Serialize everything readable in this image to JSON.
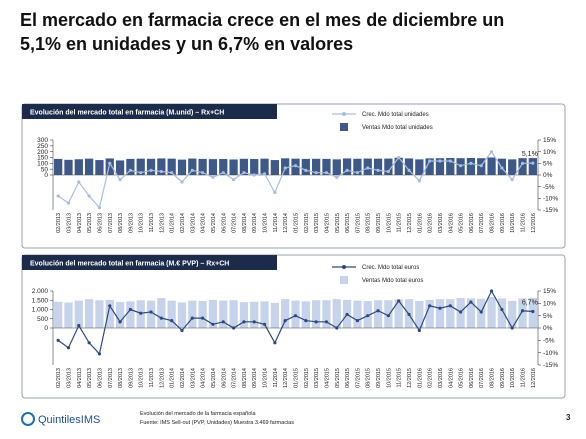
{
  "title": "El mercado en farmacia crece en el mes de diciembre un 5,1% en unidades y un 6,7% en valores",
  "chart_data": [
    {
      "type": "combo",
      "title": "Evolución del mercado total en farmacia (M.unid) – Rx+CH",
      "categories": [
        "02/2013",
        "03/2013",
        "04/2013",
        "05/2013",
        "06/2013",
        "07/2013",
        "08/2013",
        "09/2013",
        "10/2013",
        "11/2013",
        "12/2013",
        "01/2014",
        "02/2014",
        "03/2014",
        "04/2014",
        "05/2014",
        "06/2014",
        "07/2014",
        "08/2014",
        "09/2014",
        "10/2014",
        "11/2014",
        "12/2014",
        "01/2015",
        "02/2015",
        "03/2015",
        "04/2015",
        "05/2015",
        "06/2015",
        "07/2015",
        "08/2015",
        "09/2015",
        "10/2015",
        "11/2015",
        "12/2015",
        "01/2016",
        "02/2016",
        "03/2016",
        "04/2016",
        "05/2016",
        "06/2016",
        "07/2016",
        "08/2016",
        "09/2016",
        "10/2016",
        "11/2016",
        "12/2016"
      ],
      "series": [
        {
          "name": "Crec. Mdo total unidades",
          "type": "line",
          "axis": "y2",
          "color": "#a9bde0",
          "values": [
            -9,
            -12,
            -3,
            -9,
            -14,
            5,
            -2,
            2,
            1,
            2,
            1.5,
            1,
            -3,
            2,
            1,
            -1,
            1,
            -2,
            1,
            0,
            0.5,
            -7.5,
            3,
            4,
            2,
            1,
            1,
            -1,
            2,
            1,
            3,
            2,
            1.5,
            7.5,
            2,
            -2.5,
            6,
            6,
            6,
            4,
            5,
            4,
            10,
            3,
            -2,
            5,
            5.1
          ]
        },
        {
          "name": "Ventas Mdo total unidades",
          "type": "bar",
          "color": "#3e5987",
          "values": [
            138,
            130,
            135,
            140,
            128,
            142,
            125,
            138,
            140,
            139,
            142,
            140,
            132,
            141,
            138,
            136,
            137,
            133,
            139,
            137,
            140,
            128,
            143,
            140,
            138,
            139,
            138,
            134,
            142,
            139,
            141,
            140,
            141,
            148,
            142,
            134,
            143,
            144,
            146,
            144,
            146,
            144,
            150,
            140,
            134,
            144,
            145
          ]
        }
      ],
      "annotation": "5,1%",
      "ylim": [
        -300,
        300
      ],
      "yticks": [
        0,
        50,
        100,
        150,
        200,
        250,
        300
      ],
      "y2lim": [
        -15,
        15
      ],
      "y2ticks": [
        {
          "value": -15,
          "label": "-15%"
        },
        {
          "value": -10,
          "label": "-10%"
        },
        {
          "value": -5,
          "label": "-5%"
        },
        {
          "value": 0,
          "label": "0%"
        },
        {
          "value": 5,
          "label": "5%"
        },
        {
          "value": 10,
          "label": "10%"
        },
        {
          "value": 15,
          "label": "15%"
        }
      ]
    },
    {
      "type": "combo",
      "title": "Evolución del mercado total en farmacia (M.€ PVP) – Rx+CH",
      "categories": [
        "02/2013",
        "03/2013",
        "04/2013",
        "05/2013",
        "06/2013",
        "07/2013",
        "08/2013",
        "09/2013",
        "10/2013",
        "11/2013",
        "12/2013",
        "01/2014",
        "02/2014",
        "03/2014",
        "04/2014",
        "05/2014",
        "06/2014",
        "07/2014",
        "08/2014",
        "09/2014",
        "10/2014",
        "11/2014",
        "12/2014",
        "01/2015",
        "02/2015",
        "03/2015",
        "04/2015",
        "05/2015",
        "06/2015",
        "07/2015",
        "08/2015",
        "09/2015",
        "10/2015",
        "11/2015",
        "12/2015",
        "01/2016",
        "02/2016",
        "03/2016",
        "04/2016",
        "05/2016",
        "06/2016",
        "07/2016",
        "08/2016",
        "09/2016",
        "10/2016",
        "11/2016",
        "12/2016"
      ],
      "series": [
        {
          "name": "Crec. Mdo total euros",
          "type": "line",
          "axis": "y2",
          "color": "#2e4a7d",
          "values": [
            -5,
            -8,
            1,
            -6,
            -10.5,
            9,
            2.5,
            7.5,
            6,
            6.5,
            4,
            3,
            -1,
            4,
            4,
            1.5,
            2.5,
            0,
            2.5,
            2.5,
            1.5,
            -6,
            3,
            5,
            3,
            2.5,
            2.5,
            0,
            5.5,
            3,
            5,
            7,
            5,
            11,
            5.5,
            -1,
            9,
            8,
            9,
            6.5,
            10.5,
            6.5,
            15,
            7.5,
            0,
            7,
            6.7
          ]
        },
        {
          "name": "Ventas Mdo total euros",
          "type": "bar",
          "color": "#c6d3ea",
          "values": [
            1420,
            1380,
            1480,
            1560,
            1500,
            1520,
            1400,
            1440,
            1500,
            1480,
            1620,
            1480,
            1380,
            1480,
            1460,
            1520,
            1480,
            1500,
            1400,
            1420,
            1440,
            1360,
            1560,
            1480,
            1440,
            1500,
            1500,
            1560,
            1520,
            1480,
            1460,
            1500,
            1500,
            1540,
            1560,
            1460,
            1520,
            1560,
            1560,
            1620,
            1600,
            1580,
            1680,
            1600,
            1460,
            1600,
            1620
          ]
        }
      ],
      "annotation": "6,7%",
      "ylim": [
        -2000,
        2000
      ],
      "yticks": [
        0,
        500,
        {
          "value": 1000,
          "label": "1.000"
        },
        {
          "value": 1500,
          "label": "1.500"
        },
        {
          "value": 2000,
          "label": "2.000"
        }
      ],
      "y2lim": [
        -15,
        15
      ],
      "y2ticks": [
        {
          "value": -15,
          "label": "-15%"
        },
        {
          "value": -10,
          "label": "-10%"
        },
        {
          "value": -5,
          "label": "-5%"
        },
        {
          "value": 0,
          "label": "0%"
        },
        {
          "value": 5,
          "label": "5%"
        },
        {
          "value": 10,
          "label": "10%"
        },
        {
          "value": 15,
          "label": "15%"
        }
      ]
    }
  ],
  "footer": {
    "logo": "QuintilesIMS",
    "note": "Evolución del mercado de la farmacia española",
    "source": "Fuente: IMS Sell-out (PVP, Unidades) Muestra 3.469 farmacias"
  },
  "page_number": "3"
}
